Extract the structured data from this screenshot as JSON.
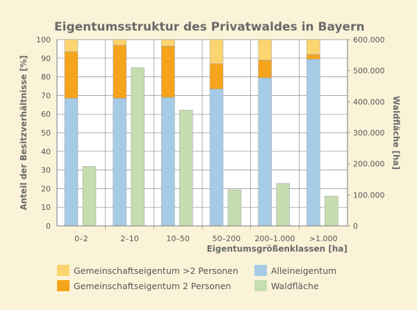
{
  "chart_data": {
    "type": "bar",
    "title": "Eigentumsstruktur des Privatwaldes in Bayern",
    "xlabel": "Eigentumsgrößenklassen [ha]",
    "ylabel_left": "Anteil der Besitzverhältnisse [%]",
    "ylabel_right": "Waldfläche [ha]",
    "categories": [
      "0–2",
      "2–10",
      "10–50",
      "50–200",
      "200–1.000",
      ">1.000"
    ],
    "y_left": {
      "min": 0,
      "max": 100,
      "ticks": [
        "0",
        "10",
        "20",
        "30",
        "40",
        "50",
        "60",
        "70",
        "80",
        "90",
        "100"
      ]
    },
    "y_right": {
      "min": 0,
      "max": 600000,
      "ticks": [
        "0",
        "100.000",
        "200.000",
        "300.000",
        "400.000",
        "500.000",
        "600.000"
      ]
    },
    "stacked_series": [
      {
        "name": "Alleineigentum",
        "color": "#a6cbe6",
        "values": [
          68.5,
          68.5,
          69,
          73.5,
          79.5,
          89.5
        ]
      },
      {
        "name": "Gemeinschaftseigentum 2 Personen",
        "color": "#f6a41c",
        "values": [
          25,
          28.5,
          27.5,
          13.5,
          9.5,
          2.5
        ]
      },
      {
        "name": "Gemeinschaftseigentum >2 Personen",
        "color": "#fcd470",
        "values": [
          6.5,
          3,
          3.5,
          13,
          11,
          8
        ]
      }
    ],
    "area_series": {
      "name": "Waldfläche",
      "color": "#c6ddb0",
      "axis": "right",
      "values": [
        192000,
        510000,
        373000,
        116000,
        137000,
        96000
      ]
    },
    "grid": true,
    "legend_position": "bottom"
  },
  "legend": {
    "items": [
      {
        "label": "Gemeinschaftseigentum >2 Personen",
        "color": "#fcd470"
      },
      {
        "label": "Alleineigentum",
        "color": "#a6cbe6"
      },
      {
        "label": "Gemeinschaftseigentum 2 Personen",
        "color": "#f6a41c"
      },
      {
        "label": "Waldfläche",
        "color": "#c6ddb0"
      }
    ]
  }
}
